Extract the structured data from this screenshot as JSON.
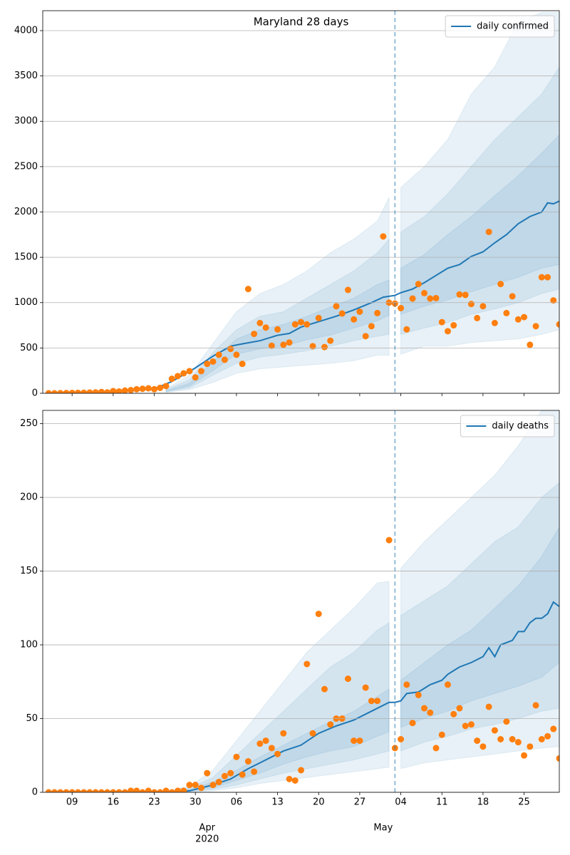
{
  "chart_data": [
    {
      "type": "line",
      "title": "Maryland 28 days",
      "legend": "upper right",
      "grid": true,
      "xlim": [
        "2020-03-04",
        "2020-05-31"
      ],
      "ylim": [
        0,
        4220
      ],
      "yticks": [
        0,
        500,
        1000,
        1500,
        2000,
        2500,
        3000,
        3500,
        4000
      ],
      "vline": "2020-05-03",
      "vline_color": "#1f77b4",
      "series": [
        {
          "name": "daily confirmed",
          "color": "#1f77b4",
          "x": [
            "2020-03-05",
            "2020-03-15",
            "2020-03-23",
            "2020-03-26",
            "2020-03-30",
            "2020-04-02",
            "2020-04-05",
            "2020-04-07",
            "2020-04-10",
            "2020-04-13",
            "2020-04-15",
            "2020-04-17",
            "2020-04-20",
            "2020-04-23",
            "2020-04-26",
            "2020-04-29",
            "2020-05-01",
            "2020-05-03",
            "2020-05-04",
            "2020-05-06",
            "2020-05-08",
            "2020-05-10",
            "2020-05-12",
            "2020-05-14",
            "2020-05-16",
            "2020-05-18",
            "2020-05-20",
            "2020-05-22",
            "2020-05-24",
            "2020-05-26",
            "2020-05-28",
            "2020-05-29",
            "2020-05-30",
            "2020-05-31"
          ],
          "values": [
            0,
            10,
            50,
            130,
            280,
            410,
            520,
            545,
            580,
            640,
            660,
            730,
            790,
            850,
            920,
            1000,
            1060,
            1080,
            1110,
            1150,
            1220,
            1300,
            1380,
            1420,
            1510,
            1560,
            1660,
            1750,
            1870,
            1950,
            2000,
            2100,
            2090,
            2120
          ]
        }
      ],
      "observed": {
        "color": "#ff7f0e",
        "x": [
          "2020-03-05",
          "2020-03-06",
          "2020-03-07",
          "2020-03-08",
          "2020-03-09",
          "2020-03-10",
          "2020-03-11",
          "2020-03-12",
          "2020-03-13",
          "2020-03-14",
          "2020-03-15",
          "2020-03-16",
          "2020-03-17",
          "2020-03-18",
          "2020-03-19",
          "2020-03-20",
          "2020-03-21",
          "2020-03-22",
          "2020-03-23",
          "2020-03-24",
          "2020-03-25",
          "2020-03-26",
          "2020-03-27",
          "2020-03-28",
          "2020-03-29",
          "2020-03-30",
          "2020-03-31",
          "2020-04-01",
          "2020-04-02",
          "2020-04-03",
          "2020-04-04",
          "2020-04-05",
          "2020-04-06",
          "2020-04-07",
          "2020-04-08",
          "2020-04-09",
          "2020-04-10",
          "2020-04-11",
          "2020-04-12",
          "2020-04-13",
          "2020-04-14",
          "2020-04-15",
          "2020-04-16",
          "2020-04-17",
          "2020-04-18",
          "2020-04-19",
          "2020-04-20",
          "2020-04-21",
          "2020-04-22",
          "2020-04-23",
          "2020-04-24",
          "2020-04-25",
          "2020-04-26",
          "2020-04-27",
          "2020-04-28",
          "2020-04-29",
          "2020-04-30",
          "2020-05-01",
          "2020-05-02",
          "2020-05-03",
          "2020-05-04",
          "2020-05-05",
          "2020-05-06",
          "2020-05-07",
          "2020-05-08",
          "2020-05-09",
          "2020-05-10",
          "2020-05-11",
          "2020-05-12",
          "2020-05-13",
          "2020-05-14",
          "2020-05-15",
          "2020-05-16",
          "2020-05-17",
          "2020-05-18",
          "2020-05-19",
          "2020-05-20",
          "2020-05-21",
          "2020-05-22",
          "2020-05-23",
          "2020-05-24",
          "2020-05-25",
          "2020-05-26",
          "2020-05-27",
          "2020-05-28",
          "2020-05-29",
          "2020-05-30",
          "2020-05-31"
        ],
        "values": [
          1,
          1,
          2,
          3,
          4,
          5,
          6,
          8,
          10,
          15,
          10,
          25,
          20,
          30,
          35,
          45,
          50,
          55,
          45,
          60,
          80,
          160,
          190,
          220,
          245,
          175,
          245,
          325,
          350,
          425,
          370,
          490,
          425,
          325,
          1150,
          655,
          775,
          725,
          525,
          705,
          535,
          560,
          760,
          785,
          760,
          520,
          830,
          510,
          580,
          960,
          880,
          1140,
          815,
          900,
          630,
          740,
          885,
          1730,
          1000,
          990,
          940,
          705,
          1045,
          1205,
          1105,
          1045,
          1050,
          785,
          685,
          750,
          1090,
          1085,
          985,
          830,
          960,
          1780,
          775,
          1205,
          885,
          1070,
          815,
          840,
          535,
          740,
          1280,
          1280,
          1025,
          760
        ]
      },
      "band_color": "#1f77b4",
      "band_alpha": 0.1,
      "band_x": [
        "2020-03-25",
        "2020-03-29",
        "2020-04-02",
        "2020-04-06",
        "2020-04-10",
        "2020-04-14",
        "2020-04-18",
        "2020-04-22",
        "2020-04-26",
        "2020-04-30",
        "2020-05-02",
        "2020-05-03",
        "2020-05-04",
        "2020-05-08",
        "2020-05-12",
        "2020-05-16",
        "2020-05-20",
        "2020-05-24",
        "2020-05-28",
        "2020-05-31"
      ],
      "bands": [
        {
          "lower": [
            10,
            40,
            120,
            220,
            270,
            290,
            310,
            330,
            360,
            420,
            420,
            null,
            430,
            520,
            520,
            560,
            580,
            600,
            650,
            700
          ],
          "upper": [
            50,
            200,
            550,
            900,
            1100,
            1200,
            1350,
            1550,
            1700,
            1900,
            2160,
            null,
            2270,
            2500,
            2800,
            3300,
            3600,
            4100,
            4200,
            4200
          ]
        },
        {
          "lower": [
            15,
            60,
            200,
            330,
            400,
            430,
            470,
            520,
            580,
            630,
            650,
            null,
            650,
            720,
            780,
            870,
            930,
            1000,
            1100,
            1150
          ],
          "upper": [
            40,
            150,
            450,
            700,
            850,
            900,
            1050,
            1200,
            1350,
            1550,
            1700,
            null,
            1780,
            1950,
            2200,
            2500,
            2800,
            3050,
            3300,
            3600
          ]
        },
        {
          "lower": [
            20,
            80,
            250,
            430,
            490,
            520,
            590,
            640,
            720,
            800,
            860,
            null,
            870,
            960,
            1030,
            1120,
            1200,
            1280,
            1380,
            1420
          ],
          "upper": [
            30,
            110,
            350,
            600,
            700,
            760,
            850,
            950,
            1050,
            1200,
            1250,
            null,
            1380,
            1530,
            1750,
            1950,
            2180,
            2400,
            2650,
            2850
          ]
        }
      ]
    },
    {
      "type": "line",
      "legend": "upper right",
      "grid": true,
      "xlim": [
        "2020-03-04",
        "2020-05-31"
      ],
      "ylim": [
        0,
        259
      ],
      "yticks": [
        0,
        50,
        100,
        150,
        200,
        250
      ],
      "vline": "2020-05-03",
      "vline_color": "#1f77b4",
      "xticks": [
        {
          "value": "2020-03-09",
          "label": "09"
        },
        {
          "value": "2020-03-16",
          "label": "16"
        },
        {
          "value": "2020-03-23",
          "label": "23"
        },
        {
          "value": "2020-03-30",
          "label": "30"
        },
        {
          "value": "2020-04-06",
          "label": "06"
        },
        {
          "value": "2020-04-13",
          "label": "13"
        },
        {
          "value": "2020-04-20",
          "label": "20"
        },
        {
          "value": "2020-04-27",
          "label": "27"
        },
        {
          "value": "2020-05-04",
          "label": "04"
        },
        {
          "value": "2020-05-11",
          "label": "11"
        },
        {
          "value": "2020-05-18",
          "label": "18"
        },
        {
          "value": "2020-05-25",
          "label": "25"
        }
      ],
      "month_labels": [
        {
          "value": "2020-04-01",
          "label": "Apr"
        },
        {
          "value": "2020-05-01",
          "label": "May"
        }
      ],
      "year_label": {
        "value": "2020-04-01",
        "label": "2020"
      },
      "series": [
        {
          "name": "daily deaths",
          "color": "#1f77b4",
          "x": [
            "2020-03-05",
            "2020-03-25",
            "2020-03-29",
            "2020-04-02",
            "2020-04-05",
            "2020-04-08",
            "2020-04-11",
            "2020-04-14",
            "2020-04-17",
            "2020-04-20",
            "2020-04-23",
            "2020-04-26",
            "2020-04-29",
            "2020-05-02",
            "2020-05-03",
            "2020-05-04",
            "2020-05-05",
            "2020-05-07",
            "2020-05-09",
            "2020-05-11",
            "2020-05-12",
            "2020-05-14",
            "2020-05-16",
            "2020-05-18",
            "2020-05-19",
            "2020-05-20",
            "2020-05-21",
            "2020-05-23",
            "2020-05-24",
            "2020-05-25",
            "2020-05-26",
            "2020-05-27",
            "2020-05-28",
            "2020-05-29",
            "2020-05-30",
            "2020-05-31"
          ],
          "values": [
            0,
            0,
            1,
            5,
            9,
            16,
            22,
            28,
            32,
            40,
            45,
            49,
            55,
            61,
            61,
            62,
            67,
            68,
            73,
            76,
            80,
            85,
            88,
            92,
            98,
            92,
            100,
            103,
            109,
            109,
            115,
            118,
            118,
            121,
            129,
            126
          ]
        }
      ],
      "observed": {
        "color": "#ff7f0e",
        "x": [
          "2020-03-05",
          "2020-03-06",
          "2020-03-07",
          "2020-03-08",
          "2020-03-09",
          "2020-03-10",
          "2020-03-11",
          "2020-03-12",
          "2020-03-13",
          "2020-03-14",
          "2020-03-15",
          "2020-03-16",
          "2020-03-17",
          "2020-03-18",
          "2020-03-19",
          "2020-03-20",
          "2020-03-21",
          "2020-03-22",
          "2020-03-23",
          "2020-03-24",
          "2020-03-25",
          "2020-03-26",
          "2020-03-27",
          "2020-03-28",
          "2020-03-29",
          "2020-03-30",
          "2020-03-31",
          "2020-04-01",
          "2020-04-02",
          "2020-04-03",
          "2020-04-04",
          "2020-04-05",
          "2020-04-06",
          "2020-04-07",
          "2020-04-08",
          "2020-04-09",
          "2020-04-10",
          "2020-04-11",
          "2020-04-12",
          "2020-04-13",
          "2020-04-14",
          "2020-04-15",
          "2020-04-16",
          "2020-04-17",
          "2020-04-18",
          "2020-04-19",
          "2020-04-20",
          "2020-04-21",
          "2020-04-22",
          "2020-04-23",
          "2020-04-24",
          "2020-04-25",
          "2020-04-26",
          "2020-04-27",
          "2020-04-28",
          "2020-04-29",
          "2020-04-30",
          "2020-05-01",
          "2020-05-02",
          "2020-05-03",
          "2020-05-04",
          "2020-05-05",
          "2020-05-06",
          "2020-05-07",
          "2020-05-08",
          "2020-05-09",
          "2020-05-10",
          "2020-05-11",
          "2020-05-12",
          "2020-05-13",
          "2020-05-14",
          "2020-05-15",
          "2020-05-16",
          "2020-05-17",
          "2020-05-18",
          "2020-05-19",
          "2020-05-20",
          "2020-05-21",
          "2020-05-22",
          "2020-05-23",
          "2020-05-24",
          "2020-05-25",
          "2020-05-26",
          "2020-05-27",
          "2020-05-28",
          "2020-05-29",
          "2020-05-30",
          "2020-05-31"
        ],
        "values": [
          0,
          0,
          0,
          0,
          0,
          0,
          0,
          0,
          0,
          0,
          0,
          0,
          0,
          0,
          1,
          1,
          0,
          1,
          0,
          0,
          1,
          0,
          1,
          1,
          5,
          5,
          3,
          13,
          5,
          7,
          11,
          13,
          24,
          12,
          21,
          14,
          33,
          35,
          30,
          26,
          40,
          9,
          8,
          15,
          87,
          40,
          121,
          70,
          46,
          50,
          50,
          77,
          35,
          35,
          71,
          62,
          62,
          null,
          171,
          30,
          36,
          73,
          47,
          66,
          57,
          54,
          30,
          39,
          73,
          53,
          57,
          45,
          46,
          35,
          31,
          58,
          42,
          36,
          48,
          36,
          34,
          25,
          31,
          59,
          36,
          38,
          43,
          23
        ]
      },
      "band_color": "#1f77b4",
      "band_alpha": 0.1,
      "band_x": [
        "2020-03-25",
        "2020-03-29",
        "2020-04-02",
        "2020-04-06",
        "2020-04-10",
        "2020-04-14",
        "2020-04-18",
        "2020-04-22",
        "2020-04-26",
        "2020-04-30",
        "2020-05-02",
        "2020-05-03",
        "2020-05-04",
        "2020-05-08",
        "2020-05-12",
        "2020-05-16",
        "2020-05-20",
        "2020-05-24",
        "2020-05-28",
        "2020-05-31"
      ],
      "bands": [
        {
          "lower": [
            0,
            0,
            1,
            3,
            6,
            8,
            10,
            12,
            14,
            16,
            17,
            null,
            16,
            20,
            22,
            24,
            26,
            28,
            30,
            31
          ],
          "upper": [
            1,
            4,
            15,
            35,
            55,
            75,
            95,
            110,
            125,
            142,
            143,
            null,
            152,
            170,
            185,
            200,
            215,
            235,
            259,
            259
          ]
        },
        {
          "lower": [
            0,
            0.5,
            2,
            5,
            9,
            13,
            16,
            19,
            22,
            26,
            28,
            null,
            28,
            34,
            38,
            43,
            46,
            50,
            55,
            57
          ],
          "upper": [
            0.5,
            3,
            10,
            25,
            40,
            55,
            70,
            85,
            95,
            110,
            115,
            null,
            120,
            130,
            140,
            155,
            170,
            180,
            200,
            210
          ]
        },
        {
          "lower": [
            0,
            1,
            3,
            8,
            13,
            19,
            24,
            28,
            31,
            38,
            41,
            null,
            44,
            50,
            55,
            62,
            67,
            72,
            78,
            88
          ],
          "upper": [
            0.5,
            2,
            7,
            15,
            24,
            32,
            40,
            48,
            55,
            65,
            70,
            null,
            76,
            88,
            100,
            110,
            125,
            140,
            160,
            180
          ]
        }
      ]
    }
  ]
}
